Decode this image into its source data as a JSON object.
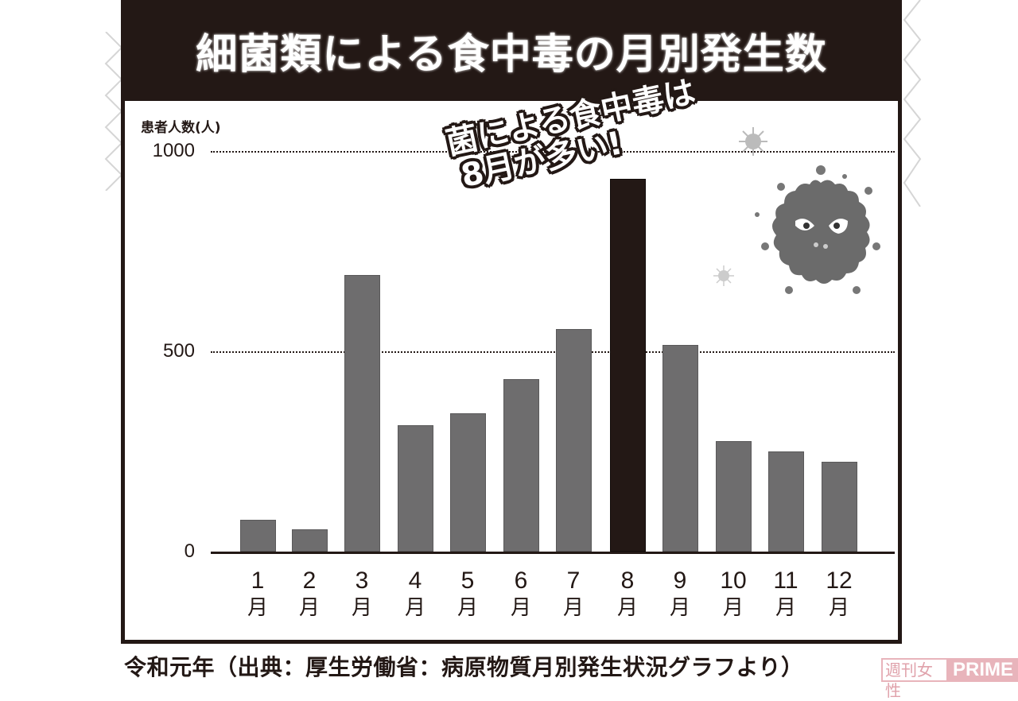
{
  "header": {
    "title": "細菌類による食中毒の月別発生数"
  },
  "callout": {
    "line1": "菌による食中毒は",
    "line2": "8月が多い!"
  },
  "caption": "令和元年（出典：厚生労働省：病原物質月別発生状況グラフより）",
  "watermark": {
    "jp": "週刊女性",
    "en": "PRIME"
  },
  "colors": {
    "bar": "#6e6d6e",
    "highlight_bar": "#231815",
    "title_bg": "#231815",
    "watermark": "#e8b4bb"
  },
  "chart_data": {
    "type": "bar",
    "title": "細菌類による食中毒の月別発生数",
    "subtitle": "令和元年（出典：厚生労働省：病原物質月別発生状況グラフより）",
    "xlabel": "",
    "ylabel": "患者人数(人)",
    "categories": [
      "1月",
      "2月",
      "3月",
      "4月",
      "5月",
      "6月",
      "7月",
      "8月",
      "9月",
      "10月",
      "11月",
      "12月"
    ],
    "category_numbers": [
      "1",
      "2",
      "3",
      "4",
      "5",
      "6",
      "7",
      "8",
      "9",
      "10",
      "11",
      "12"
    ],
    "category_unit": "月",
    "values": [
      80,
      55,
      690,
      315,
      345,
      430,
      555,
      930,
      515,
      275,
      250,
      225
    ],
    "highlight_index": 7,
    "ylim": [
      0,
      1000
    ],
    "yticks": [
      0,
      500,
      1000
    ],
    "ytick_labels": [
      "0",
      "500",
      "1000"
    ],
    "grid": "dotted horizontal at 500 and 1000",
    "legend": null,
    "annotations": [
      "菌による食中毒は 8月が多い!"
    ]
  }
}
